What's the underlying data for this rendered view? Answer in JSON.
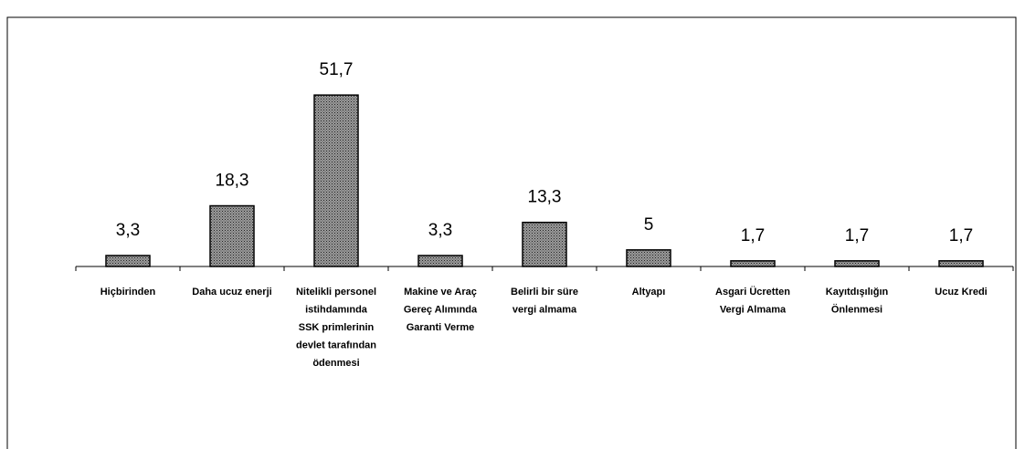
{
  "chart_data": {
    "type": "bar",
    "categories": [
      [
        "Hiçbirinden"
      ],
      [
        "Daha ucuz enerji"
      ],
      [
        "Nitelikli personel",
        "istihdamında",
        "SSK primlerinin",
        "devlet tarafından",
        "ödenmesi"
      ],
      [
        "Makine ve Araç",
        "Gereç Alımında",
        "Garanti Verme"
      ],
      [
        "Belirli bir süre",
        "vergi almama"
      ],
      [
        "Altyapı"
      ],
      [
        "Asgari Ücretten",
        "Vergi Almama"
      ],
      [
        "Kayıtdışılığın",
        "Önlenmesi"
      ],
      [
        "Ucuz Kredi"
      ]
    ],
    "values": [
      3.3,
      18.3,
      51.7,
      3.3,
      13.3,
      5,
      1.7,
      1.7,
      1.7
    ],
    "value_labels": [
      "3,3",
      "18,3",
      "51,7",
      "3,3",
      "13,3",
      "5",
      "1,7",
      "1,7",
      "1,7"
    ],
    "color": "#9a9a9a",
    "ylim": [
      0,
      60
    ]
  }
}
